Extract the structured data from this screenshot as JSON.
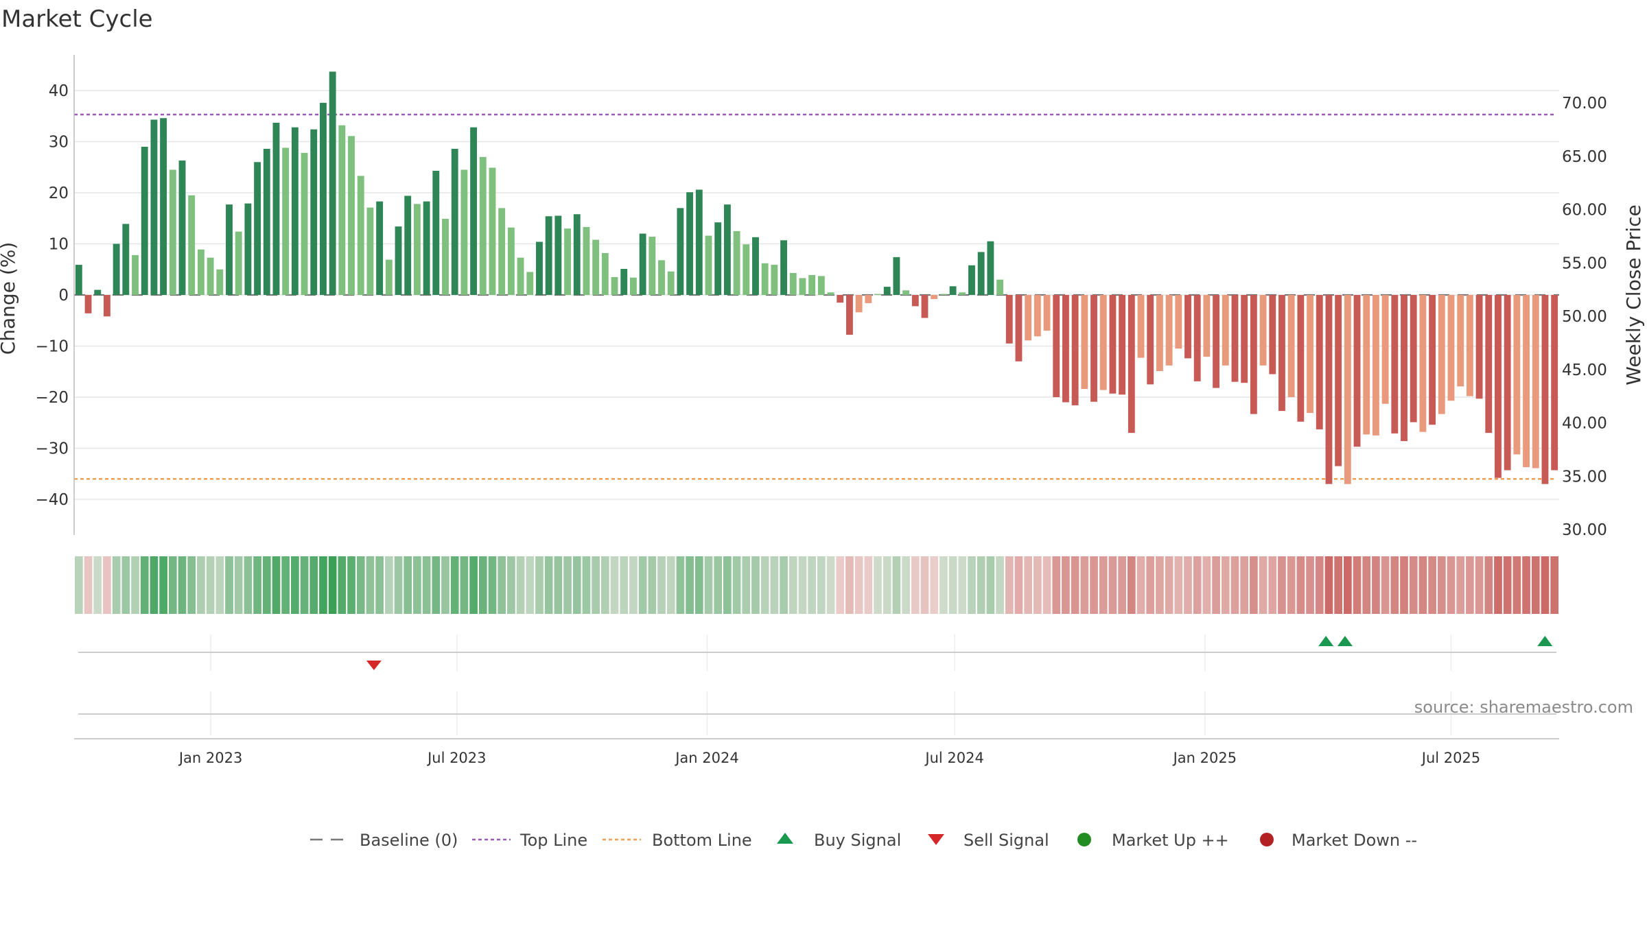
{
  "chart_data": {
    "type": "bar",
    "title": "Market Cycle",
    "ylabel": "Change (%)",
    "y2label": "Weekly Close Price",
    "ylim": [
      -47,
      48
    ],
    "y2lim": [
      29.5,
      74.5
    ],
    "yticks": [
      40,
      30,
      20,
      10,
      0,
      -10,
      -20,
      -30,
      -40
    ],
    "ytick_labels": [
      "40",
      "30",
      "20",
      "10",
      "0",
      "−10",
      "−20",
      "−30",
      "−40"
    ],
    "y2ticks": [
      70,
      65,
      60,
      55,
      50,
      45,
      40,
      35,
      30
    ],
    "y2tick_labels": [
      "70.00",
      "65.00",
      "60.00",
      "55.00",
      "50.00",
      "45.00",
      "40.00",
      "35.00",
      "30.00"
    ],
    "x_start": "2022-09-26",
    "x_end": "2025-09-15",
    "x_tick_dates": [
      "2023-01-01",
      "2023-07-01",
      "2024-01-01",
      "2024-07-01",
      "2025-01-01",
      "2025-07-01"
    ],
    "x_tick_labels": [
      "Jan 2023",
      "Jul 2023",
      "Jan 2024",
      "Jul 2024",
      "Jan 2025",
      "Jul 2025"
    ],
    "top_line": 35.3,
    "bottom_line": -36,
    "baseline": 0,
    "values": [
      5.9,
      -3.6,
      1.0,
      -4.2,
      10.0,
      13.9,
      7.8,
      29.0,
      34.3,
      34.6,
      24.5,
      26.3,
      19.5,
      8.9,
      7.3,
      5.0,
      17.7,
      12.4,
      17.9,
      26.0,
      28.6,
      33.7,
      28.8,
      32.8,
      27.8,
      32.4,
      37.6,
      43.7,
      33.2,
      31.1,
      23.3,
      17.1,
      18.3,
      6.9,
      13.4,
      19.4,
      17.8,
      18.3,
      24.3,
      14.9,
      28.6,
      24.5,
      32.8,
      27.0,
      24.9,
      17.0,
      13.2,
      7.3,
      4.5,
      10.4,
      15.4,
      15.5,
      13.0,
      15.8,
      13.3,
      10.8,
      8.2,
      3.5,
      5.1,
      3.4,
      12.0,
      11.4,
      6.8,
      4.6,
      17.0,
      20.1,
      20.6,
      11.6,
      14.2,
      17.7,
      12.5,
      9.9,
      11.3,
      6.2,
      5.9,
      10.7,
      4.3,
      3.3,
      3.9,
      3.7,
      0.5,
      -1.5,
      -7.8,
      -3.4,
      -1.6,
      0.2,
      1.6,
      7.4,
      0.9,
      -2.2,
      -4.5,
      -0.8,
      0.2,
      1.7,
      0.5,
      5.8,
      8.4,
      10.5,
      3.0,
      -9.5,
      -13.0,
      -8.9,
      -8.1,
      -7.0,
      -20.0,
      -21.0,
      -21.6,
      -18.4,
      -20.9,
      -18.6,
      -19.3,
      -19.5,
      -27.0,
      -12.3,
      -17.5,
      -14.9,
      -13.8,
      -10.5,
      -12.4,
      -16.9,
      -12.1,
      -18.2,
      -13.8,
      -17.0,
      -17.2,
      -23.3,
      -13.8,
      -15.5,
      -22.7,
      -20.0,
      -24.8,
      -23.1,
      -26.3,
      -37.0,
      -33.5,
      -37.0,
      -29.7,
      -27.3,
      -27.5,
      -21.3,
      -27.1,
      -28.6,
      -24.9,
      -26.8,
      -25.4,
      -23.3,
      -20.7,
      -17.9,
      -19.8,
      -20.3,
      -27.0,
      -35.8,
      -34.3,
      -31.2,
      -33.7,
      -33.9,
      -37.0,
      -34.3
    ],
    "emphasis": [
      0,
      0,
      0,
      0,
      0,
      0,
      1,
      0,
      0,
      0,
      1,
      0,
      1,
      1,
      1,
      1,
      0,
      1,
      0,
      0,
      0,
      0,
      1,
      0,
      1,
      0,
      0,
      0,
      1,
      1,
      1,
      1,
      0,
      1,
      0,
      0,
      1,
      0,
      0,
      1,
      0,
      1,
      0,
      1,
      1,
      1,
      1,
      1,
      1,
      0,
      0,
      0,
      1,
      0,
      1,
      1,
      1,
      1,
      0,
      1,
      0,
      1,
      1,
      1,
      0,
      0,
      0,
      1,
      0,
      0,
      1,
      1,
      0,
      1,
      1,
      0,
      1,
      1,
      1,
      1,
      1,
      0,
      0,
      1,
      1,
      1,
      0,
      0,
      1,
      0,
      0,
      1,
      1,
      0,
      1,
      0,
      0,
      0,
      1,
      0,
      0,
      1,
      1,
      1,
      0,
      0,
      0,
      1,
      0,
      1,
      0,
      0,
      0,
      1,
      0,
      1,
      1,
      1,
      0,
      0,
      1,
      0,
      1,
      0,
      0,
      0,
      1,
      0,
      0,
      1,
      0,
      1,
      0,
      0,
      0,
      1,
      0,
      1,
      1,
      1,
      0,
      0,
      0,
      1,
      0,
      1,
      1,
      1,
      1,
      0,
      0,
      0,
      0,
      1,
      1,
      1,
      0,
      0,
      0,
      1
    ],
    "buy_signals": [
      "2025-03-31",
      "2025-04-14",
      "2025-09-08"
    ],
    "sell_signals": [
      "2023-05-01"
    ],
    "colors": {
      "up_strong": "#2e8555",
      "up_light": "#7fc07f",
      "down_strong": "#c85a56",
      "down_light": "#e99a7c",
      "top_line": "#9b59b6",
      "bottom_line": "#f0a050",
      "baseline": "#777777",
      "buy": "#1a9850",
      "sell": "#d62728",
      "market_up": "#228b22",
      "market_down": "#b22222",
      "grid": "#e5e5e5"
    },
    "legend_position": "bottom-center",
    "legend": [
      {
        "label": "Baseline (0)",
        "icon": "dashed-dark-line"
      },
      {
        "label": "Top Line",
        "icon": "dotted-purple-line"
      },
      {
        "label": "Bottom Line",
        "icon": "dotted-orange-line"
      },
      {
        "label": "Buy Signal",
        "icon": "green-up-triangle"
      },
      {
        "label": "Sell Signal",
        "icon": "red-down-triangle"
      },
      {
        "label": "Market Up ++",
        "icon": "green-dot"
      },
      {
        "label": "Market Down --",
        "icon": "red-dot"
      }
    ],
    "source": "source: sharemaestro.com"
  }
}
